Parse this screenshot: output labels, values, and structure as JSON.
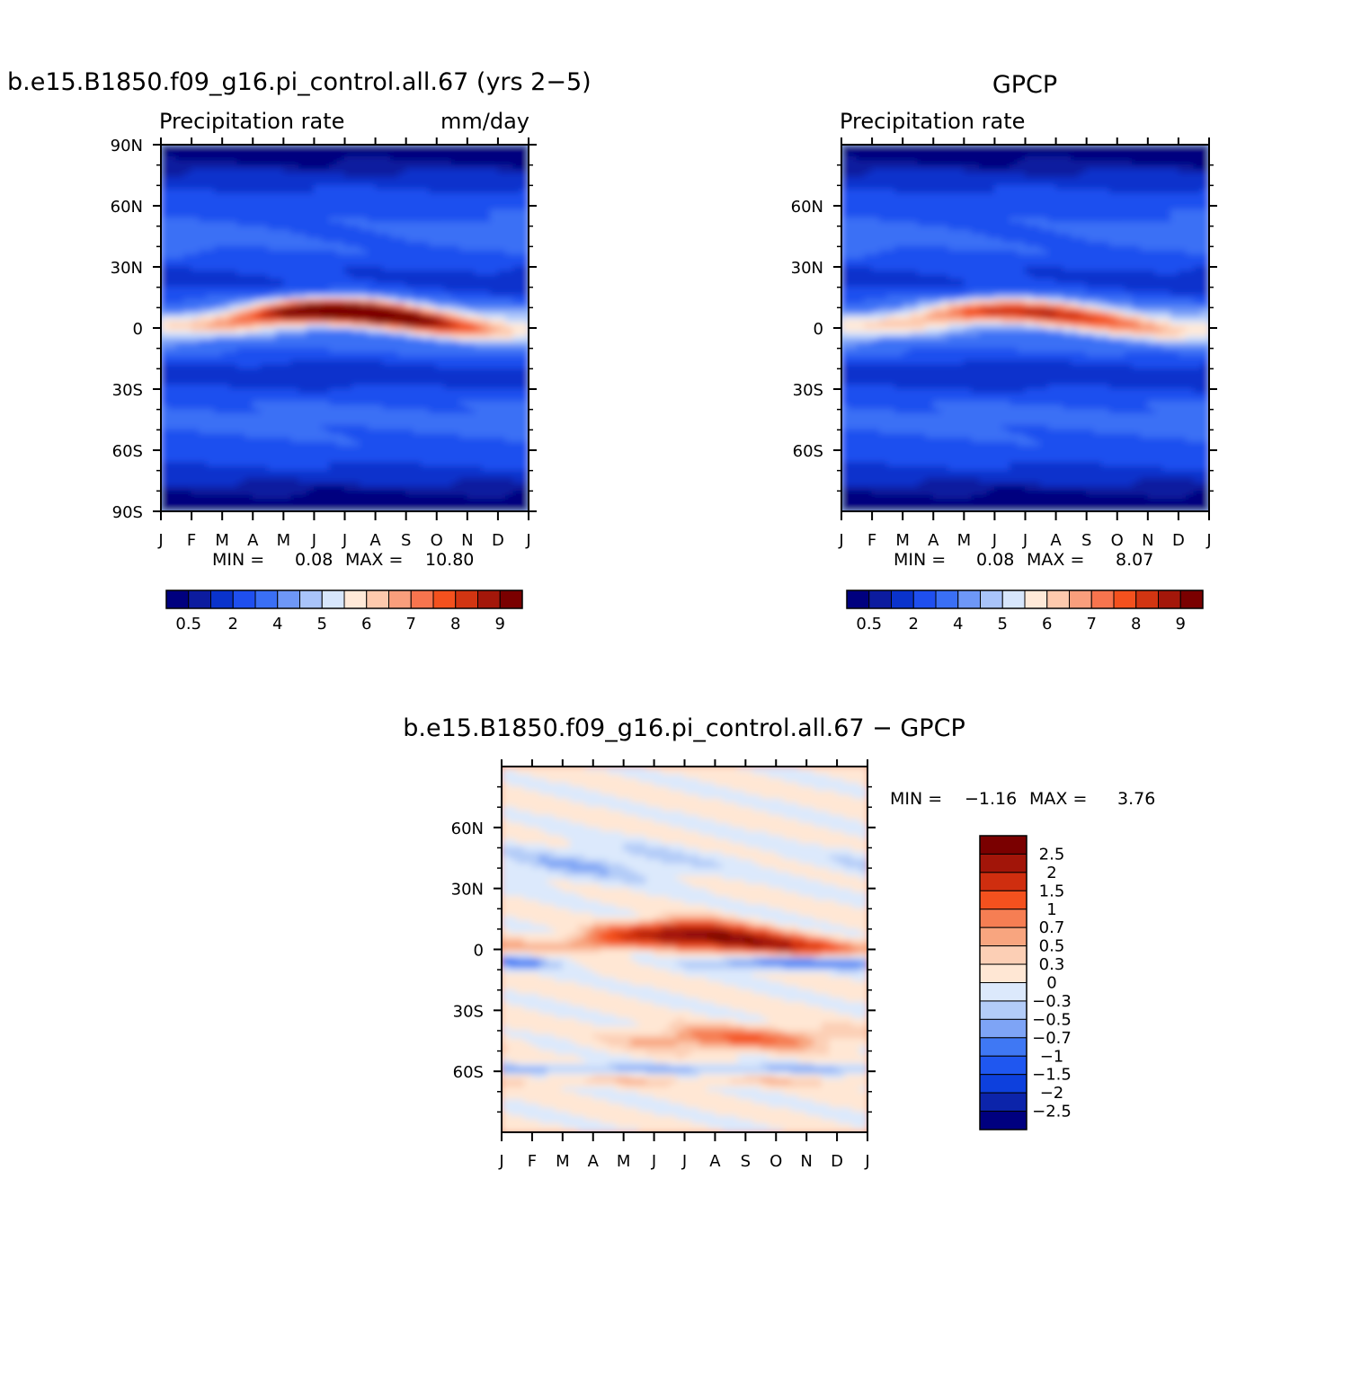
{
  "colors": {
    "precip": [
      "#00007f",
      "#0c1c9f",
      "#0a33cc",
      "#1f4fef",
      "#3a6ff5",
      "#6e97f7",
      "#a9c4fa",
      "#d7e6fc",
      "#ffe9d8",
      "#fdc9ad",
      "#f99e7c",
      "#f7744e",
      "#f4511e",
      "#d23512",
      "#a4170a",
      "#7a0000"
    ],
    "diff": [
      "#00007f",
      "#0c24aa",
      "#0d40dd",
      "#1f57f0",
      "#3f78f4",
      "#7ea4f6",
      "#b3ccf8",
      "#dce9fc",
      "#ffe7d4",
      "#fccfb5",
      "#f8a57f",
      "#f67e53",
      "#f4511e",
      "#cf2e0f",
      "#a21509",
      "#7a0000"
    ]
  },
  "axes": {
    "months": [
      "J",
      "F",
      "M",
      "A",
      "M",
      "J",
      "J",
      "A",
      "S",
      "O",
      "N",
      "D",
      "J"
    ],
    "lat_ticks": [
      {
        "label": "90N",
        "lat": 90
      },
      {
        "label": "60N",
        "lat": 60
      },
      {
        "label": "30N",
        "lat": 30
      },
      {
        "label": "0",
        "lat": 0
      },
      {
        "label": "30S",
        "lat": -30
      },
      {
        "label": "60S",
        "lat": -60
      },
      {
        "label": "90S",
        "lat": -90
      }
    ],
    "lat_ticks_short": [
      {
        "label": "60N",
        "lat": 60
      },
      {
        "label": "30N",
        "lat": 30
      },
      {
        "label": "0",
        "lat": 0
      },
      {
        "label": "30S",
        "lat": -30
      },
      {
        "label": "60S",
        "lat": -60
      }
    ]
  },
  "panels": {
    "model": {
      "title": "b.e15.B1850.f09_g16.pi_control.all.67 (yrs 2−5)",
      "left_label": "Precipitation rate",
      "right_label": "mm/day",
      "min_label": "MIN =",
      "min": "0.08",
      "max_label": "MAX =",
      "max": "10.80"
    },
    "obs": {
      "title": "GPCP",
      "left_label": "Precipitation rate",
      "min_label": "MIN =",
      "min": "0.08",
      "max_label": "MAX =",
      "max": "8.07"
    },
    "diff": {
      "title": "b.e15.B1850.f09_g16.pi_control.all.67 − GPCP",
      "min_label": "MIN =",
      "min": "−1.16",
      "max_label": "MAX =",
      "max": "3.76"
    }
  },
  "colorbars": {
    "precip_labels": [
      "0.5",
      "2",
      "4",
      "5",
      "6",
      "7",
      "8",
      "9"
    ],
    "diff_labels": [
      "2.5",
      "2",
      "1.5",
      "1",
      "0.7",
      "0.5",
      "0.3",
      "0",
      "−0.3",
      "−0.5",
      "−0.7",
      "−1",
      "−1.5",
      "−2",
      "−2.5"
    ]
  },
  "chart_data": [
    {
      "type": "heatmap",
      "title": "b.e15.B1850.f09_g16.pi_control.all.67 (yrs 2−5)",
      "subtitle": "Precipitation rate",
      "units": "mm/day",
      "x": [
        "J",
        "F",
        "M",
        "A",
        "M",
        "J",
        "J",
        "A",
        "S",
        "O",
        "N",
        "D",
        "J"
      ],
      "y_range": [
        -90,
        90
      ],
      "min": 0.08,
      "max": 10.8,
      "itcz_max_value": 10.8,
      "levels": [
        0.5,
        1,
        2,
        3,
        4,
        4.5,
        5,
        5.5,
        6,
        6.5,
        7,
        7.5,
        8,
        8.5,
        9
      ]
    },
    {
      "type": "heatmap",
      "title": "GPCP",
      "subtitle": "Precipitation rate",
      "x": [
        "J",
        "F",
        "M",
        "A",
        "M",
        "J",
        "J",
        "A",
        "S",
        "O",
        "N",
        "D",
        "J"
      ],
      "y_range": [
        -90,
        90
      ],
      "min": 0.08,
      "max": 8.07,
      "itcz_max_value": 8.07,
      "levels": [
        0.5,
        1,
        2,
        3,
        4,
        4.5,
        5,
        5.5,
        6,
        6.5,
        7,
        7.5,
        8,
        8.5,
        9
      ]
    },
    {
      "type": "heatmap",
      "title": "b.e15.B1850.f09_g16.pi_control.all.67 − GPCP",
      "x": [
        "J",
        "F",
        "M",
        "A",
        "M",
        "J",
        "J",
        "A",
        "S",
        "O",
        "N",
        "D",
        "J"
      ],
      "y_range": [
        -90,
        90
      ],
      "min": -1.16,
      "max": 3.76,
      "levels": [
        -2.5,
        -2,
        -1.5,
        -1,
        -0.7,
        -0.5,
        -0.3,
        0,
        0.3,
        0.5,
        0.7,
        1,
        1.5,
        2,
        2.5
      ]
    }
  ]
}
